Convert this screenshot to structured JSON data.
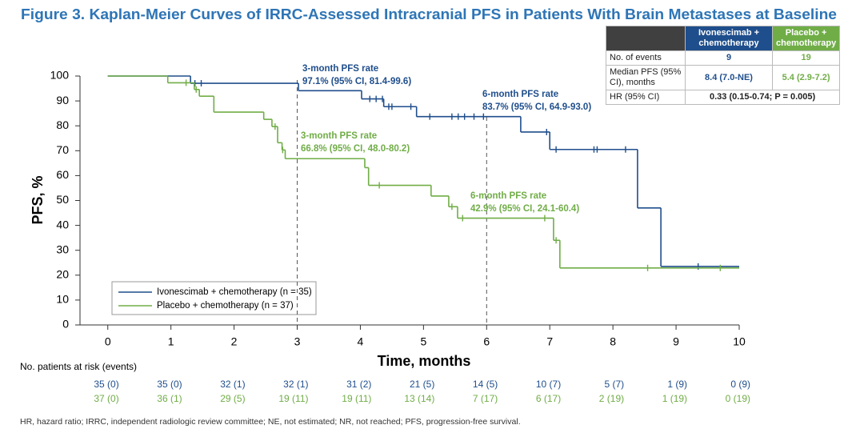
{
  "title": "Figure 3. Kaplan-Meier Curves of IRRC-Assessed Intracranial PFS in Patients With Brain Metastases at Baseline",
  "summary_table": {
    "header": [
      "Ivonescimab + chemotherapy",
      "Placebo + chemotherapy"
    ],
    "rows": [
      [
        "No. of events",
        "9",
        "19"
      ],
      [
        "Median PFS (95% CI), months",
        "8.4 (7.0-NE)",
        "5.4 (2.9-7.2)"
      ],
      [
        "HR (95% CI)",
        "0.33 (0.15-0.74; P = 0.005)"
      ]
    ]
  },
  "chart_data": {
    "type": "step",
    "xlabel": "Time, months",
    "ylabel": "PFS, %",
    "xlim": [
      -0.44,
      10
    ],
    "ylim": [
      0,
      100
    ],
    "xticks": [
      0,
      1,
      2,
      3,
      4,
      5,
      6,
      7,
      8,
      9,
      10
    ],
    "yticks": [
      0,
      10,
      20,
      30,
      40,
      50,
      60,
      70,
      80,
      90,
      100
    ],
    "series": [
      {
        "name": "Ivonescimab + chemotherapy (n = 35)",
        "color": "#1f4e8c",
        "x": [
          0,
          1.31,
          3.02,
          4.02,
          4.37,
          4.89,
          6.54,
          7.0,
          8.39,
          8.76,
          10
        ],
        "values": [
          100,
          97.1,
          94.1,
          90.8,
          87.7,
          83.7,
          77.5,
          70.5,
          47.0,
          23.5,
          23.5
        ],
        "censor_x": [
          1.38,
          1.48,
          4.15,
          4.25,
          4.35,
          4.45,
          4.5,
          4.8,
          5.1,
          5.45,
          5.55,
          5.65,
          5.8,
          5.95,
          6.95,
          7.1,
          7.7,
          7.75,
          8.2,
          9.35
        ],
        "censor_y": [
          97.1,
          97.1,
          90.8,
          90.8,
          90.8,
          87.7,
          87.7,
          87.7,
          83.7,
          83.7,
          83.7,
          83.7,
          83.7,
          83.7,
          77.5,
          70.5,
          70.5,
          70.5,
          70.5,
          23.5
        ]
      },
      {
        "name": "Placebo + chemotherapy (n = 37)",
        "color": "#70ad47",
        "x": [
          0,
          0.95,
          1.37,
          1.45,
          1.68,
          2.47,
          2.6,
          2.69,
          2.76,
          2.81,
          4.07,
          4.13,
          5.12,
          5.4,
          5.54,
          7.06,
          7.16,
          10
        ],
        "values": [
          100,
          97.3,
          94.6,
          91.9,
          85.5,
          82.6,
          79.7,
          73.2,
          70.3,
          66.8,
          63.2,
          56.1,
          51.8,
          47.5,
          42.9,
          34.0,
          22.9,
          22.9
        ],
        "censor_x": [
          1.24,
          1.4,
          2.65,
          2.77,
          4.3,
          5.45,
          5.62,
          6.92,
          7.1,
          8.55,
          9.7
        ],
        "censor_y": [
          97.3,
          94.6,
          79.7,
          70.3,
          56.1,
          47.5,
          42.9,
          42.9,
          34.0,
          22.9,
          22.9
        ]
      }
    ],
    "reference_lines": [
      3,
      6
    ],
    "annotations": [
      {
        "lines": [
          "3-month PFS rate",
          "97.1% (95% CI, 81.4-99.6)"
        ],
        "color": "#1f4e8c"
      },
      {
        "lines": [
          "6-month PFS rate",
          "83.7% (95% CI, 64.9-93.0)"
        ],
        "color": "#1f4e8c"
      },
      {
        "lines": [
          "3-month PFS rate",
          "66.8% (95% CI, 48.0-80.2)"
        ],
        "color": "#70ad47"
      },
      {
        "lines": [
          "6-month PFS rate",
          "42.9% (95% CI, 24.1-60.4)"
        ],
        "color": "#70ad47"
      }
    ],
    "risk_table": {
      "title": "No. patients at risk (events)",
      "rows": [
        [
          "35 (0)",
          "35 (0)",
          "32 (1)",
          "32 (1)",
          "31 (2)",
          "21 (5)",
          "14 (5)",
          "10 (7)",
          "5 (7)",
          "1 (9)",
          "0 (9)"
        ],
        [
          "37 (0)",
          "36 (1)",
          "29 (5)",
          "19 (11)",
          "19 (11)",
          "13 (14)",
          "7 (17)",
          "6 (17)",
          "2 (19)",
          "1 (19)",
          "0 (19)"
        ]
      ]
    }
  },
  "footnote": "HR, hazard ratio; IRRC, independent radiologic review committee; NE, not estimated; NR, not reached; PFS, progression-free survival."
}
